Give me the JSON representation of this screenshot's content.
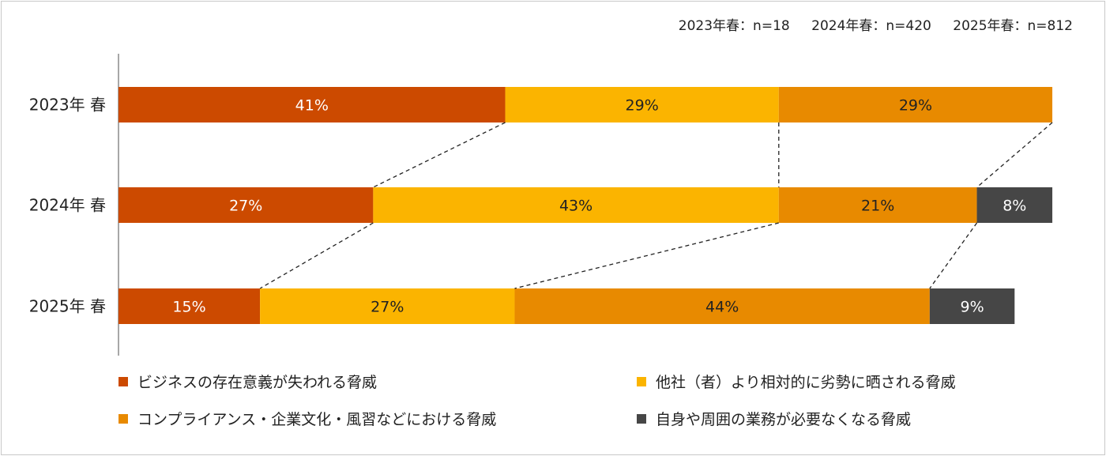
{
  "chart_data": {
    "type": "bar",
    "orientation": "horizontal",
    "stacked": true,
    "percent_stacked": true,
    "sample_sizes": [
      "2023年春：n=18",
      "2024年春：n=420",
      "2025年春：n=812"
    ],
    "categories": [
      "2023年 春",
      "2024年 春",
      "2025年 春"
    ],
    "series": [
      {
        "name": "ビジネスの存在意義が失われる脅威",
        "color": "#CC4A00",
        "values": [
          41,
          27,
          15
        ],
        "labels": [
          "41%",
          "27%",
          "15%"
        ]
      },
      {
        "name": "他社（者）より相対的に劣勢に晒される脅威",
        "color": "#FBB400",
        "values": [
          29,
          43,
          27
        ],
        "labels": [
          "29%",
          "43%",
          "27%"
        ]
      },
      {
        "name": "コンプライアンス・企業文化・風習などにおける脅威",
        "color": "#E88A00",
        "values": [
          29,
          21,
          44
        ],
        "labels": [
          "29%",
          "21%",
          "44%"
        ]
      },
      {
        "name": "自身や周囲の業務が必要なくなる脅威",
        "color": "#464646",
        "values": [
          0,
          8,
          9
        ],
        "labels": [
          "",
          "8%",
          "9%"
        ]
      }
    ],
    "legend_position": "bottom",
    "series_lines": "dashed",
    "grid": false
  }
}
